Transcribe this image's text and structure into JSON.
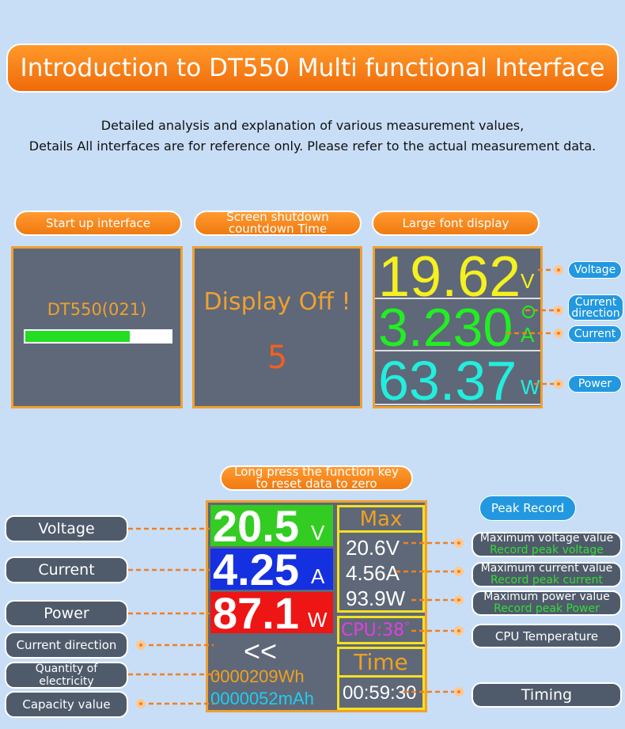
{
  "header": {
    "title": "Introduction to DT550 Multi functional Interface",
    "subtitle": [
      "Detailed analysis and explanation of various measurement values,",
      "Details All interfaces are for reference only. Please refer to the actual measurement data."
    ]
  },
  "startup": {
    "label": "Start up interface",
    "model": "DT550(021)"
  },
  "shutdown": {
    "label": [
      "Screen shutdown",
      "countdown Time"
    ],
    "message": "Display Off !",
    "count": "5"
  },
  "large_font": {
    "label": "Large font display",
    "rows": [
      [
        "19.62",
        "V"
      ],
      [
        "3.230",
        "A"
      ],
      [
        "63.37",
        "W"
      ]
    ],
    "callouts": [
      "Voltage",
      [
        "Current",
        "direction"
      ],
      "Current",
      "Power"
    ]
  },
  "main": {
    "note": [
      "Long press the function key",
      "to reset data to zero"
    ],
    "peak_label": "Peak Record",
    "rows": [
      [
        "20.5",
        "V"
      ],
      [
        "4.25",
        "A"
      ],
      [
        "87.1",
        "W"
      ]
    ],
    "direction": "<<",
    "energy": "0000209Wh",
    "capacity": "0000052mAh",
    "max_title": "Max",
    "max_values": [
      "20.6V",
      "4.56A",
      "93.9W"
    ],
    "cpu": "CPU:38",
    "cpu_unit": "°",
    "time_title": "Time",
    "time": "00:59:30",
    "left_callouts": [
      "Voltage",
      "Current",
      "Power",
      "Current direction",
      "Quantity of electricity",
      "Capacity value"
    ],
    "right_callouts": [
      [
        "Maximum voltage value",
        "Record peak voltage"
      ],
      [
        "Maximum current value",
        "Record peak current"
      ],
      [
        "Maximum power value",
        "Record peak Power"
      ],
      [
        "CPU Temperature"
      ],
      [
        "Timing"
      ]
    ]
  }
}
